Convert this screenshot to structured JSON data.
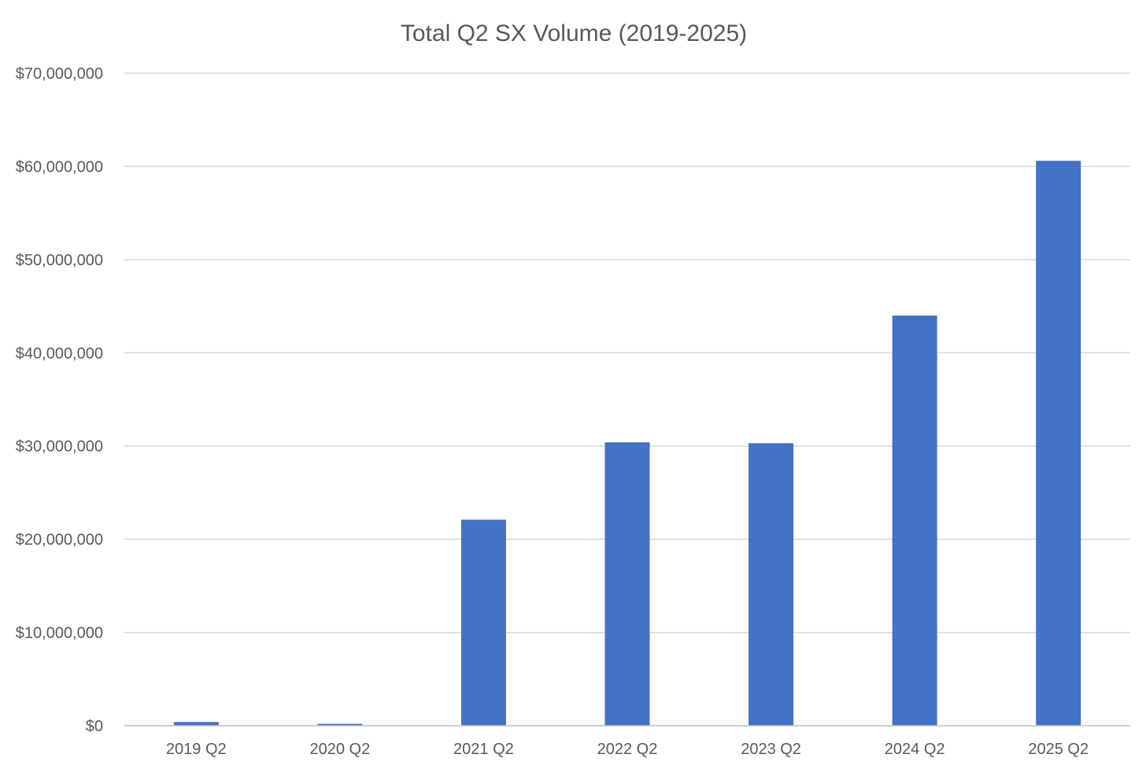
{
  "chart_data": {
    "type": "bar",
    "title": "Total Q2 SX Volume (2019-2025)",
    "xlabel": "",
    "ylabel": "",
    "categories": [
      "2019 Q2",
      "2020 Q2",
      "2021 Q2",
      "2022 Q2",
      "2023 Q2",
      "2024 Q2",
      "2025 Q2"
    ],
    "values": [
      400000,
      200000,
      22100000,
      30400000,
      30300000,
      44000000,
      60600000
    ],
    "ylim": [
      0,
      70000000
    ],
    "yticks": [
      0,
      10000000,
      20000000,
      30000000,
      40000000,
      50000000,
      60000000,
      70000000
    ],
    "ytick_labels": [
      "$0",
      "$10,000,000",
      "$20,000,000",
      "$30,000,000",
      "$40,000,000",
      "$50,000,000",
      "$60,000,000",
      "$70,000,000"
    ],
    "grid": true,
    "legend": "none",
    "bar_color": "#4472c4"
  }
}
